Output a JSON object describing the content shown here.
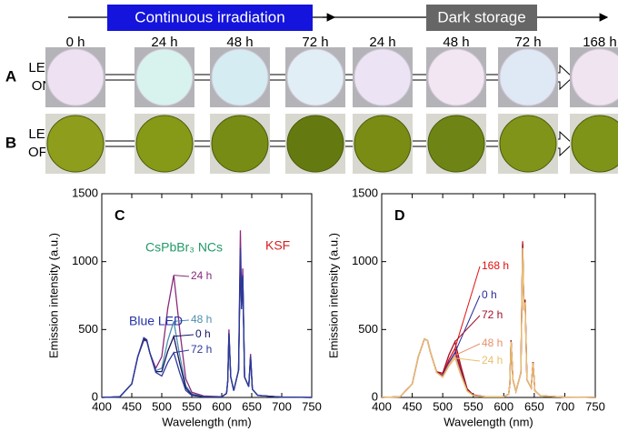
{
  "timeline": {
    "phases": [
      "Continuous irradiation",
      "Dark storage"
    ],
    "times": [
      "0 h",
      "24 h",
      "48 h",
      "72 h",
      "24 h",
      "48 h",
      "72 h",
      "168 h"
    ]
  },
  "rows": [
    {
      "letter": "A",
      "label": [
        "LED",
        "ON"
      ]
    },
    {
      "letter": "B",
      "label": [
        "LED",
        "OFF"
      ]
    }
  ],
  "chart_data": [
    {
      "type": "line",
      "panel": "C",
      "xlabel": "Wavelength (nm)",
      "ylabel": "Emission intensity (a.u.)",
      "xlim": [
        400,
        750
      ],
      "ylim": [
        0,
        1500
      ],
      "xticks": [
        400,
        450,
        500,
        550,
        600,
        650,
        700,
        750
      ],
      "yticks": [
        0,
        500,
        1000,
        1500
      ],
      "annotations": [
        {
          "text": "Blue LED",
          "color": "#2233a8"
        },
        {
          "text": "CsPbBr₃ NCs",
          "color": "#22996a"
        },
        {
          "text": "KSF",
          "color": "#d42020"
        }
      ],
      "x": [
        400,
        430,
        450,
        460,
        470,
        475,
        480,
        490,
        500,
        510,
        520,
        530,
        540,
        550,
        570,
        600,
        608,
        610,
        612,
        615,
        620,
        628,
        631,
        633,
        635,
        638,
        645,
        648,
        651,
        660,
        700,
        750
      ],
      "series": [
        {
          "name": "24 h",
          "color": "#8a2a7c",
          "values": [
            0,
            5,
            100,
            300,
            420,
            415,
            330,
            215,
            300,
            656,
            900,
            494,
            137,
            38,
            11,
            5,
            30,
            120,
            500,
            150,
            50,
            200,
            1230,
            700,
            950,
            150,
            80,
            320,
            60,
            15,
            3,
            0
          ]
        },
        {
          "name": "48 h",
          "color": "#4f8fae",
          "values": [
            0,
            5,
            100,
            300,
            430,
            420,
            330,
            197,
            215,
            418,
            560,
            307,
            86,
            25,
            7,
            5,
            30,
            120,
            460,
            150,
            50,
            200,
            1000,
            650,
            880,
            150,
            80,
            300,
            60,
            15,
            3,
            0
          ]
        },
        {
          "name": "0 h",
          "color": "#161660",
          "values": [
            0,
            5,
            100,
            300,
            430,
            420,
            330,
            190,
            190,
            340,
            450,
            250,
            70,
            20,
            6,
            5,
            30,
            120,
            470,
            150,
            50,
            200,
            1050,
            650,
            900,
            150,
            80,
            300,
            60,
            15,
            3,
            0
          ]
        },
        {
          "name": "72 h",
          "color": "#2c3a9c",
          "values": [
            0,
            5,
            100,
            300,
            440,
            425,
            330,
            185,
            158,
            257,
            330,
            180,
            52,
            15,
            5,
            5,
            30,
            120,
            470,
            150,
            50,
            200,
            1100,
            650,
            900,
            150,
            80,
            300,
            60,
            15,
            3,
            0
          ]
        }
      ]
    },
    {
      "type": "line",
      "panel": "D",
      "xlabel": "Wavelength (nm)",
      "ylabel": "Emission intensity (a.u.)",
      "xlim": [
        400,
        750
      ],
      "ylim": [
        0,
        1500
      ],
      "xticks": [
        400,
        450,
        500,
        550,
        600,
        650,
        700,
        750
      ],
      "yticks": [
        0,
        500,
        1000,
        1500
      ],
      "annotations": [],
      "x": [
        400,
        430,
        450,
        460,
        470,
        475,
        480,
        490,
        500,
        510,
        520,
        530,
        540,
        550,
        570,
        600,
        608,
        610,
        612,
        615,
        620,
        628,
        631,
        633,
        635,
        638,
        645,
        648,
        651,
        660,
        700,
        750
      ],
      "series": [
        {
          "name": "168 h",
          "color": "#e01010",
          "values": [
            0,
            5,
            100,
            300,
            430,
            420,
            330,
            187,
            165,
            278,
            360,
            197,
            56,
            17,
            5,
            5,
            25,
            100,
            420,
            130,
            45,
            180,
            1150,
            650,
            720,
            130,
            70,
            260,
            50,
            12,
            3,
            0
          ]
        },
        {
          "name": "0 h",
          "color": "#2a2a9a",
          "values": [
            0,
            5,
            100,
            300,
            430,
            420,
            330,
            185,
            158,
            257,
            330,
            180,
            52,
            15,
            5,
            5,
            25,
            100,
            420,
            130,
            45,
            180,
            1120,
            640,
            710,
            130,
            70,
            260,
            50,
            12,
            3,
            0
          ]
        },
        {
          "name": "72 h",
          "color": "#a01028",
          "values": [
            0,
            5,
            100,
            300,
            430,
            420,
            330,
            189,
            178,
            313,
            410,
            225,
            64,
            19,
            6,
            5,
            25,
            100,
            420,
            130,
            45,
            180,
            1130,
            650,
            720,
            130,
            70,
            260,
            50,
            12,
            3,
            0
          ]
        },
        {
          "name": "48 h",
          "color": "#e8906a",
          "values": [
            0,
            5,
            100,
            300,
            430,
            420,
            330,
            184,
            153,
            243,
            310,
            170,
            49,
            15,
            5,
            5,
            25,
            100,
            410,
            130,
            45,
            180,
            1100,
            640,
            700,
            130,
            70,
            255,
            50,
            12,
            3,
            0
          ]
        },
        {
          "name": "24 h",
          "color": "#e8c070",
          "values": [
            0,
            5,
            100,
            300,
            430,
            420,
            330,
            183,
            148,
            229,
            290,
            158,
            46,
            14,
            5,
            5,
            25,
            100,
            410,
            130,
            45,
            180,
            1100,
            640,
            700,
            130,
            70,
            255,
            50,
            12,
            3,
            0
          ]
        }
      ]
    }
  ]
}
